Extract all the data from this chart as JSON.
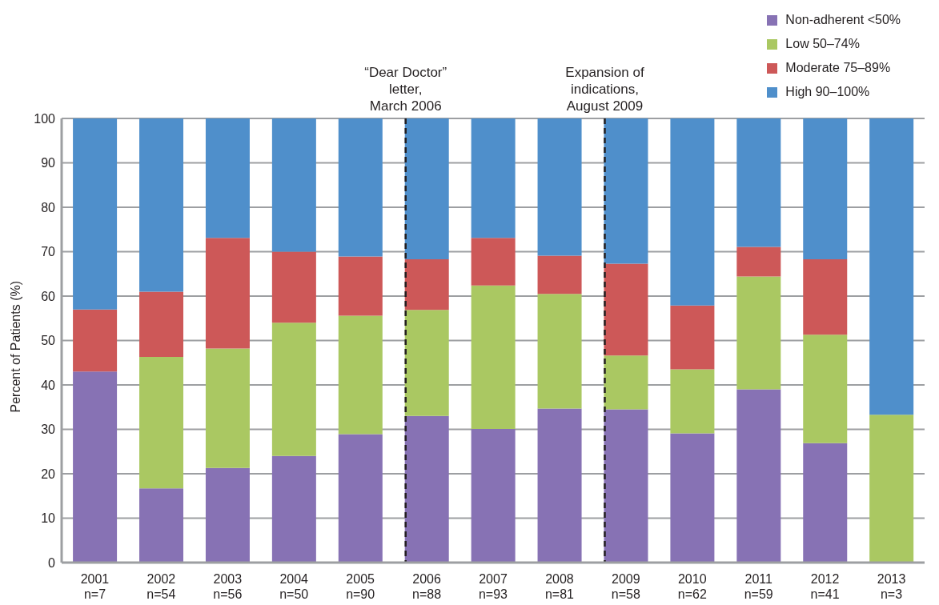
{
  "chart_data": {
    "type": "bar",
    "stacked": true,
    "ylabel": "Percent of Patients (%)",
    "categories": [
      "2001\nn=7",
      "2002\nn=54",
      "2003\nn=56",
      "2004\nn=50",
      "2005\nn=90",
      "2006\nn=88",
      "2007\nn=93",
      "2008\nn=81",
      "2009\nn=58",
      "2010\nn=62",
      "2011\nn=59",
      "2012\nn=41",
      "2013\nn=3"
    ],
    "series": [
      {
        "name": "Non-adherent <50%",
        "color": "#8772b4",
        "values": [
          43,
          16.7,
          21.3,
          24,
          28.9,
          33,
          30.1,
          34.7,
          34.5,
          29.1,
          39,
          26.9,
          0
        ]
      },
      {
        "name": "Low 50–74%",
        "color": "#aac862",
        "values": [
          0,
          29.6,
          26.9,
          30,
          26.7,
          23.9,
          32.3,
          25.8,
          12.1,
          14.4,
          25.4,
          24.4,
          33.3
        ]
      },
      {
        "name": "Moderate 75–89%",
        "color": "#cd5858",
        "values": [
          14,
          14.7,
          24.9,
          16,
          13.3,
          11.4,
          10.7,
          8.6,
          20.7,
          14.4,
          6.7,
          17,
          0
        ]
      },
      {
        "name": "High 90–100%",
        "color": "#4f8fcb",
        "values": [
          43,
          39,
          26.9,
          30,
          31.1,
          31.7,
          26.9,
          30.9,
          32.7,
          42.1,
          28.9,
          31.7,
          66.7
        ]
      }
    ],
    "ylim": [
      0,
      100
    ],
    "yticks": [
      0,
      10,
      20,
      30,
      40,
      50,
      60,
      70,
      80,
      90,
      100
    ],
    "grid": "y",
    "legend": "top right",
    "ref_lines": [
      {
        "axis": "x",
        "value": "2006\nn=88",
        "label": "“Dear Doctor”\nletter,\nMarch 2006",
        "color": "#231f20",
        "line_style": "dashed"
      },
      {
        "axis": "x",
        "value": "2009\nn=58",
        "label": "Expansion of\nindications,\nAugust 2009",
        "color": "#231f20",
        "line_style": "dashed"
      }
    ]
  }
}
